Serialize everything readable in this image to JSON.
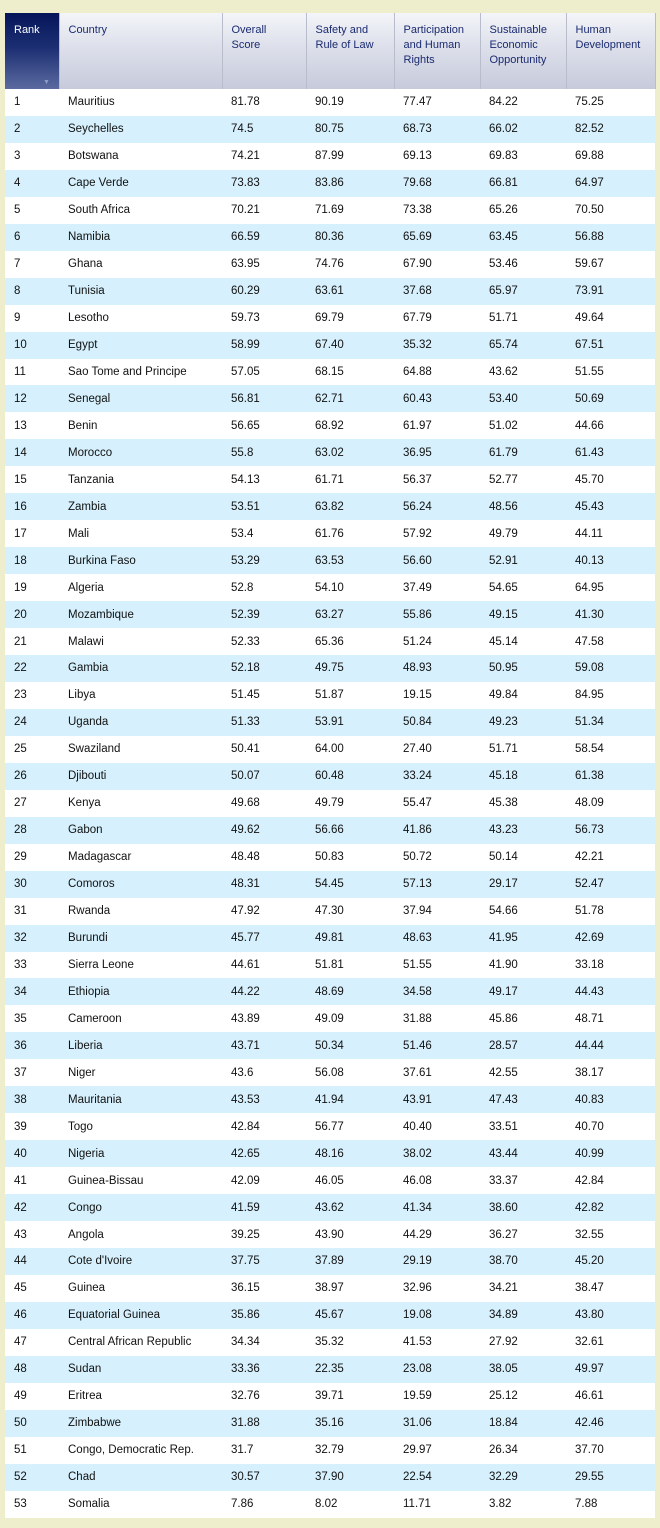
{
  "headers": [
    "Rank",
    "Country",
    "Overall Score",
    "Safety and Rule of Law",
    "Participation and Human Rights",
    "Sustainable Economic Opportunity",
    "Human Development"
  ],
  "colors": {
    "background": "#eeeecd",
    "row_alt": "#d6f1fd",
    "header_rank": "#06155a"
  },
  "rows": [
    [
      "1",
      "Mauritius",
      "81.78",
      "90.19",
      "77.47",
      "84.22",
      "75.25"
    ],
    [
      "2",
      "Seychelles",
      "74.5",
      "80.75",
      "68.73",
      "66.02",
      "82.52"
    ],
    [
      "3",
      "Botswana",
      "74.21",
      "87.99",
      "69.13",
      "69.83",
      "69.88"
    ],
    [
      "4",
      "Cape Verde",
      "73.83",
      "83.86",
      "79.68",
      "66.81",
      "64.97"
    ],
    [
      "5",
      "South Africa",
      "70.21",
      "71.69",
      "73.38",
      "65.26",
      "70.50"
    ],
    [
      "6",
      "Namibia",
      "66.59",
      "80.36",
      "65.69",
      "63.45",
      "56.88"
    ],
    [
      "7",
      "Ghana",
      "63.95",
      "74.76",
      "67.90",
      "53.46",
      "59.67"
    ],
    [
      "8",
      "Tunisia",
      "60.29",
      "63.61",
      "37.68",
      "65.97",
      "73.91"
    ],
    [
      "9",
      "Lesotho",
      "59.73",
      "69.79",
      "67.79",
      "51.71",
      "49.64"
    ],
    [
      "10",
      "Egypt",
      "58.99",
      "67.40",
      "35.32",
      "65.74",
      "67.51"
    ],
    [
      "11",
      "Sao Tome and Principe",
      "57.05",
      "68.15",
      "64.88",
      "43.62",
      "51.55"
    ],
    [
      "12",
      "Senegal",
      "56.81",
      "62.71",
      "60.43",
      "53.40",
      "50.69"
    ],
    [
      "13",
      "Benin",
      "56.65",
      "68.92",
      "61.97",
      "51.02",
      "44.66"
    ],
    [
      "14",
      "Morocco",
      "55.8",
      "63.02",
      "36.95",
      "61.79",
      "61.43"
    ],
    [
      "15",
      "Tanzania",
      "54.13",
      "61.71",
      "56.37",
      "52.77",
      "45.70"
    ],
    [
      "16",
      "Zambia",
      "53.51",
      "63.82",
      "56.24",
      "48.56",
      "45.43"
    ],
    [
      "17",
      "Mali",
      "53.4",
      "61.76",
      "57.92",
      "49.79",
      "44.11"
    ],
    [
      "18",
      "Burkina Faso",
      "53.29",
      "63.53",
      "56.60",
      "52.91",
      "40.13"
    ],
    [
      "19",
      "Algeria",
      "52.8",
      "54.10",
      "37.49",
      "54.65",
      "64.95"
    ],
    [
      "20",
      "Mozambique",
      "52.39",
      "63.27",
      "55.86",
      "49.15",
      "41.30"
    ],
    [
      "21",
      "Malawi",
      "52.33",
      "65.36",
      "51.24",
      "45.14",
      "47.58"
    ],
    [
      "22",
      "Gambia",
      "52.18",
      "49.75",
      "48.93",
      "50.95",
      "59.08"
    ],
    [
      "23",
      "Libya",
      "51.45",
      "51.87",
      "19.15",
      "49.84",
      "84.95"
    ],
    [
      "24",
      "Uganda",
      "51.33",
      "53.91",
      "50.84",
      "49.23",
      "51.34"
    ],
    [
      "25",
      "Swaziland",
      "50.41",
      "64.00",
      "27.40",
      "51.71",
      "58.54"
    ],
    [
      "26",
      "Djibouti",
      "50.07",
      "60.48",
      "33.24",
      "45.18",
      "61.38"
    ],
    [
      "27",
      "Kenya",
      "49.68",
      "49.79",
      "55.47",
      "45.38",
      "48.09"
    ],
    [
      "28",
      "Gabon",
      "49.62",
      "56.66",
      "41.86",
      "43.23",
      "56.73"
    ],
    [
      "29",
      "Madagascar",
      "48.48",
      "50.83",
      "50.72",
      "50.14",
      "42.21"
    ],
    [
      "30",
      "Comoros",
      "48.31",
      "54.45",
      "57.13",
      "29.17",
      "52.47"
    ],
    [
      "31",
      "Rwanda",
      "47.92",
      "47.30",
      "37.94",
      "54.66",
      "51.78"
    ],
    [
      "32",
      "Burundi",
      "45.77",
      "49.81",
      "48.63",
      "41.95",
      "42.69"
    ],
    [
      "33",
      "Sierra Leone",
      "44.61",
      "51.81",
      "51.55",
      "41.90",
      "33.18"
    ],
    [
      "34",
      "Ethiopia",
      "44.22",
      "48.69",
      "34.58",
      "49.17",
      "44.43"
    ],
    [
      "35",
      "Cameroon",
      "43.89",
      "49.09",
      "31.88",
      "45.86",
      "48.71"
    ],
    [
      "36",
      "Liberia",
      "43.71",
      "50.34",
      "51.46",
      "28.57",
      "44.44"
    ],
    [
      "37",
      "Niger",
      "43.6",
      "56.08",
      "37.61",
      "42.55",
      "38.17"
    ],
    [
      "38",
      "Mauritania",
      "43.53",
      "41.94",
      "43.91",
      "47.43",
      "40.83"
    ],
    [
      "39",
      "Togo",
      "42.84",
      "56.77",
      "40.40",
      "33.51",
      "40.70"
    ],
    [
      "40",
      "Nigeria",
      "42.65",
      "48.16",
      "38.02",
      "43.44",
      "40.99"
    ],
    [
      "41",
      "Guinea-Bissau",
      "42.09",
      "46.05",
      "46.08",
      "33.37",
      "42.84"
    ],
    [
      "42",
      "Congo",
      "41.59",
      "43.62",
      "41.34",
      "38.60",
      "42.82"
    ],
    [
      "43",
      "Angola",
      "39.25",
      "43.90",
      "44.29",
      "36.27",
      "32.55"
    ],
    [
      "44",
      "Cote d'Ivoire",
      "37.75",
      "37.89",
      "29.19",
      "38.70",
      "45.20"
    ],
    [
      "45",
      "Guinea",
      "36.15",
      "38.97",
      "32.96",
      "34.21",
      "38.47"
    ],
    [
      "46",
      "Equatorial Guinea",
      "35.86",
      "45.67",
      "19.08",
      "34.89",
      "43.80"
    ],
    [
      "47",
      "Central African Republic",
      "34.34",
      "35.32",
      "41.53",
      "27.92",
      "32.61"
    ],
    [
      "48",
      "Sudan",
      "33.36",
      "22.35",
      "23.08",
      "38.05",
      "49.97"
    ],
    [
      "49",
      "Eritrea",
      "32.76",
      "39.71",
      "19.59",
      "25.12",
      "46.61"
    ],
    [
      "50",
      "Zimbabwe",
      "31.88",
      "35.16",
      "31.06",
      "18.84",
      "42.46"
    ],
    [
      "51",
      "Congo, Democratic Rep.",
      "31.7",
      "32.79",
      "29.97",
      "26.34",
      "37.70"
    ],
    [
      "52",
      "Chad",
      "30.57",
      "37.90",
      "22.54",
      "32.29",
      "29.55"
    ],
    [
      "53",
      "Somalia",
      "7.86",
      "8.02",
      "11.71",
      "3.82",
      "7.88"
    ]
  ]
}
